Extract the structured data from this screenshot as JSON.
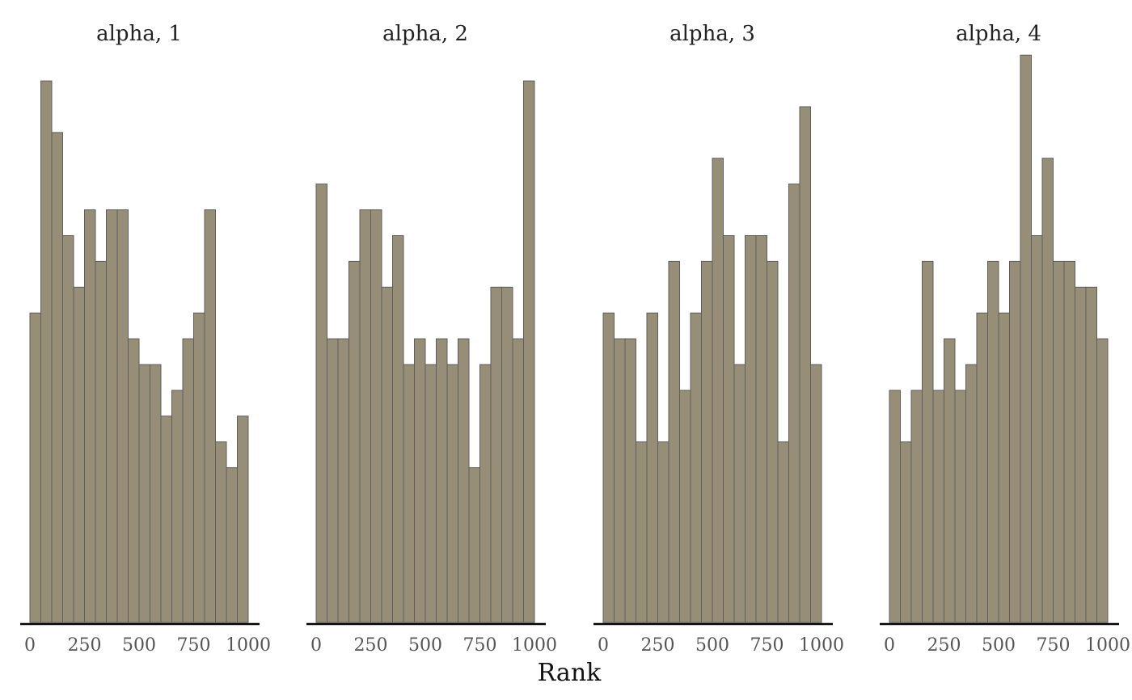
{
  "chart_data": {
    "type": "bar",
    "subtype": "histogram",
    "xlabel": "Rank",
    "ylabel": "",
    "bin_width": 50,
    "xlim": [
      0,
      1000
    ],
    "ylim": [
      0,
      22
    ],
    "x_ticks": [
      "0",
      "250",
      "500",
      "750",
      "1000"
    ],
    "grid": false,
    "colors": {
      "bar_fill": "#968e77",
      "bar_stroke": "#5e5e5e"
    },
    "panels": [
      {
        "title": "alpha, 1",
        "values": [
          12,
          21,
          19,
          15,
          13,
          16,
          14,
          16,
          16,
          11,
          10,
          10,
          8,
          9,
          11,
          12,
          16,
          7,
          6,
          8
        ]
      },
      {
        "title": "alpha, 2",
        "values": [
          17,
          11,
          11,
          14,
          16,
          16,
          13,
          15,
          10,
          11,
          10,
          11,
          10,
          11,
          6,
          10,
          13,
          13,
          11,
          21
        ]
      },
      {
        "title": "alpha, 3",
        "values": [
          12,
          11,
          11,
          7,
          12,
          7,
          14,
          9,
          12,
          14,
          18,
          15,
          10,
          15,
          15,
          14,
          7,
          17,
          20,
          10
        ]
      },
      {
        "title": "alpha, 4",
        "values": [
          9,
          7,
          9,
          14,
          9,
          11,
          9,
          10,
          12,
          14,
          12,
          14,
          22,
          15,
          18,
          14,
          14,
          13,
          13,
          11
        ]
      }
    ]
  }
}
